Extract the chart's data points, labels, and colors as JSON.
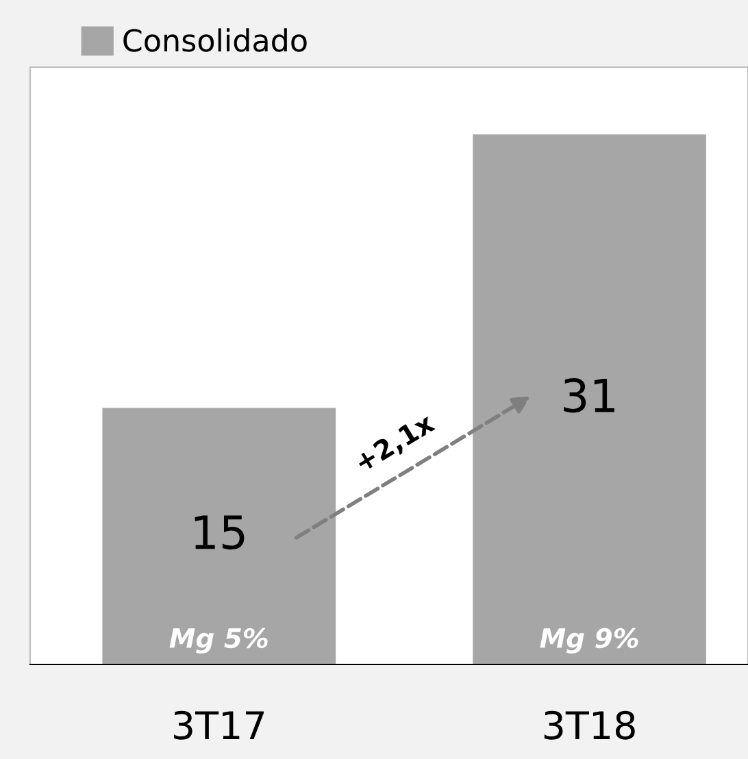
{
  "chart_data": {
    "type": "bar",
    "categories": [
      "3T17",
      "3T18"
    ],
    "series": [
      {
        "name": "Consolidado",
        "color": "#a6a6a6",
        "values": [
          15,
          31
        ]
      }
    ],
    "data_labels": true,
    "legend": "top left",
    "grid": false,
    "annotations": [
      "Mg 5%",
      "Mg 9%",
      "+2,1x"
    ]
  }
}
